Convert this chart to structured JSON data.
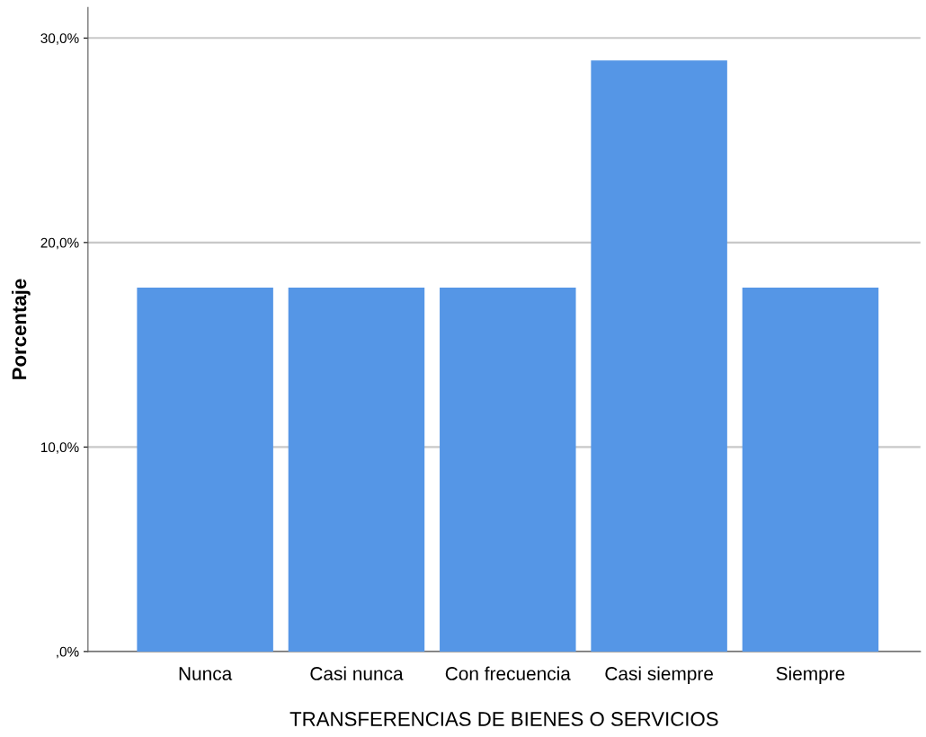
{
  "chart_data": {
    "type": "bar",
    "xlabel": "TRANSFERENCIAS DE BIENES O SERVICIOS",
    "ylabel": "Porcentaje",
    "categories": [
      "Nunca",
      "Casi nunca",
      "Con frecuencia",
      "Casi siempre",
      "Siempre"
    ],
    "values": [
      17.8,
      17.8,
      17.8,
      28.9,
      17.8
    ],
    "color": "#5596e6",
    "ylim": [
      0,
      31.5
    ],
    "yticks": [
      {
        "value": 0,
        "label": ",0%"
      },
      {
        "value": 10,
        "label": "10,0%"
      },
      {
        "value": 20,
        "label": "20,0%"
      },
      {
        "value": 30,
        "label": "30,0%"
      }
    ],
    "grid": "y"
  }
}
